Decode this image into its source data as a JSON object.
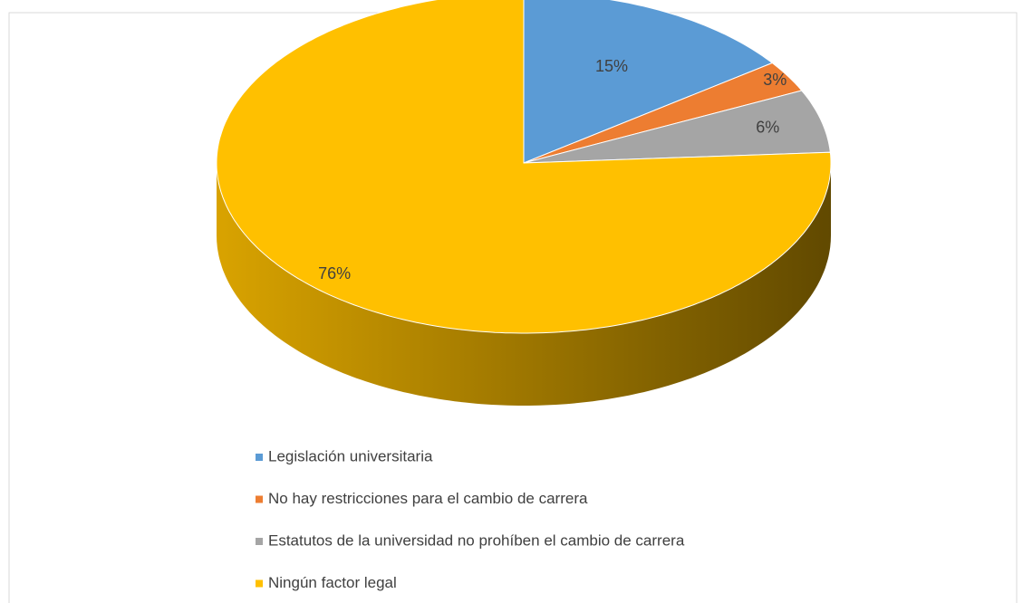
{
  "chart_data": {
    "type": "pie",
    "view": "3d",
    "categories": [
      "Legislación universitaria",
      "No hay restricciones para el cambio de carrera",
      "Estatutos de la universidad no prohíben el cambio de carrera",
      "Ningún factor legal"
    ],
    "values": [
      15,
      3,
      6,
      76
    ],
    "value_labels": [
      "15%",
      "3%",
      "6%",
      "76%"
    ],
    "colors": [
      "#5b9bd5",
      "#ed7d31",
      "#a5a5a5",
      "#ffc000"
    ],
    "legend": "bottom"
  }
}
